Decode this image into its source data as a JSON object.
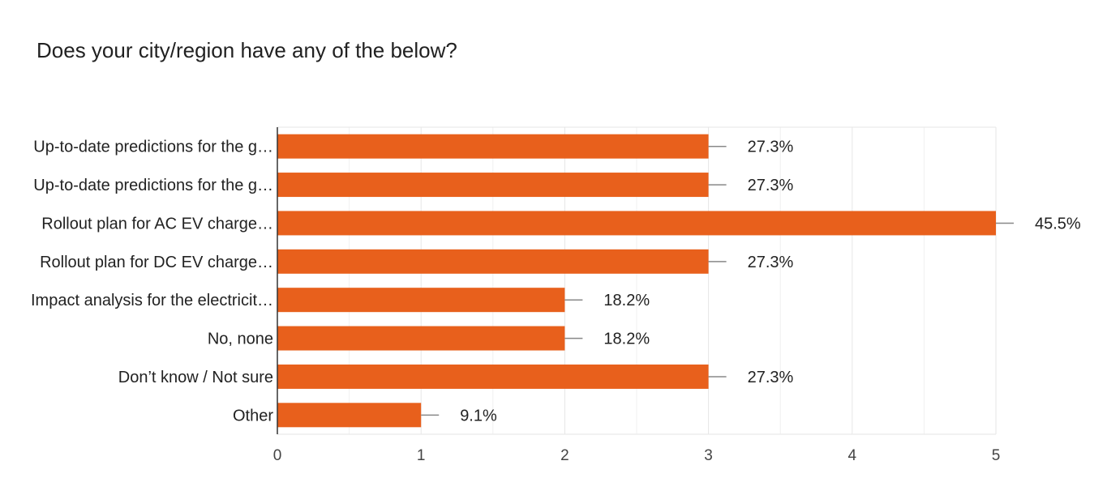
{
  "title": "Does your city/region have any of the below?",
  "chart_data": {
    "type": "bar",
    "orientation": "horizontal",
    "categories": [
      "Up-to-date predictions for the g…",
      "Up-to-date predictions for the g…",
      "Rollout plan for AC EV charge…",
      "Rollout plan for DC EV charge…",
      "Impact analysis for the electricit…",
      "No, none",
      "Don’t know / Not sure",
      "Other"
    ],
    "values": [
      3,
      3,
      5,
      3,
      2,
      2,
      3,
      1
    ],
    "value_labels": [
      "27.3%",
      "27.3%",
      "45.5%",
      "27.3%",
      "18.2%",
      "18.2%",
      "27.3%",
      "9.1%"
    ],
    "x_ticks": [
      "0",
      "1",
      "2",
      "3",
      "4",
      "5"
    ],
    "xlim": [
      0,
      5
    ],
    "grid": true,
    "bar_color": "#e8601c",
    "grid_color": "#e6e6e6"
  }
}
